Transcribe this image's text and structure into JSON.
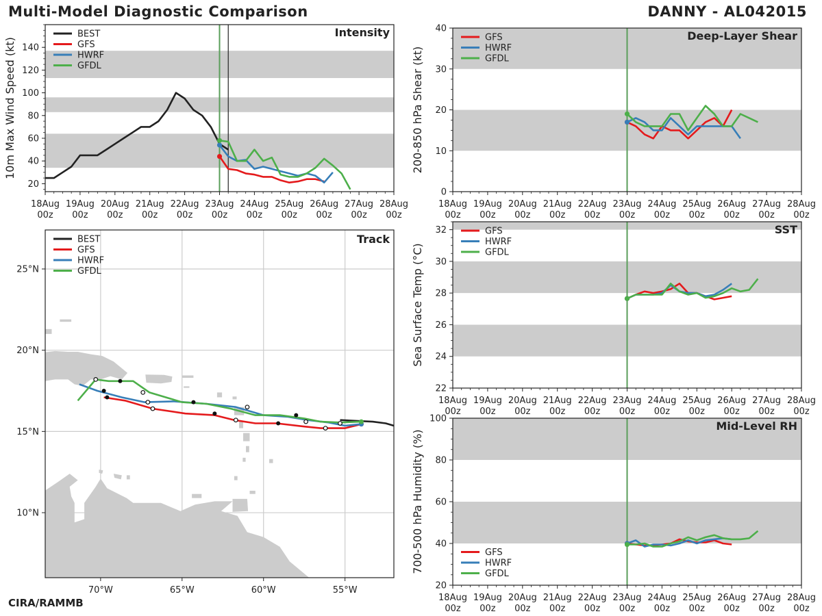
{
  "header": {
    "title": "Multi-Model Diagnostic Comparison",
    "storm": "DANNY - AL042015"
  },
  "footer": {
    "credit": "CIRA/RAMMB"
  },
  "colors": {
    "BEST": "#222222",
    "GFS": "#e41a1c",
    "HWRF": "#377eb8",
    "GFDL": "#4daf4a",
    "band": "#cccccc",
    "land": "#cccccc",
    "grid": "#cccccc",
    "init_line": "#5a9e5a"
  },
  "time_axis": {
    "ticks": [
      "18Aug 00z",
      "19Aug 00z",
      "20Aug 00z",
      "21Aug 00z",
      "22Aug 00z",
      "23Aug 00z",
      "24Aug 00z",
      "25Aug 00z",
      "26Aug 00z",
      "27Aug 00z",
      "28Aug 00z"
    ],
    "range_days": [
      0,
      10
    ],
    "init_day": 5
  },
  "chart_data": [
    {
      "id": "intensity",
      "type": "line",
      "title": "Intensity",
      "ylabel": "10m Max Wind Speed (kt)",
      "ylim": [
        13,
        160
      ],
      "yticks": [
        "20",
        "40",
        "60",
        "80",
        "100",
        "120",
        "140"
      ],
      "bands": [
        [
          34,
          64
        ],
        [
          83,
          96
        ],
        [
          113,
          137
        ]
      ],
      "extra_vline_day": 5.25,
      "legend": [
        "BEST",
        "GFS",
        "HWRF",
        "GFDL"
      ],
      "series": [
        {
          "name": "BEST",
          "x": [
            0,
            0.25,
            0.5,
            0.75,
            1,
            1.25,
            1.5,
            1.75,
            2,
            2.25,
            2.5,
            2.75,
            3,
            3.25,
            3.5,
            3.75,
            4,
            4.25,
            4.5,
            4.75,
            5,
            5.25
          ],
          "y": [
            25,
            25,
            30,
            35,
            45,
            45,
            45,
            50,
            55,
            60,
            65,
            70,
            70,
            75,
            85,
            100,
            95,
            85,
            80,
            70,
            55,
            50
          ]
        },
        {
          "name": "GFS",
          "x": [
            5,
            5.25,
            5.5,
            5.75,
            6,
            6.25,
            6.5,
            6.75,
            7,
            7.25,
            7.5,
            7.75,
            8,
            8.25
          ],
          "y": [
            44,
            33,
            32,
            29,
            28,
            26,
            26,
            23,
            21,
            22,
            24,
            24,
            22,
            null
          ]
        },
        {
          "name": "HWRF",
          "x": [
            5,
            5.25,
            5.5,
            5.75,
            6,
            6.25,
            6.5,
            6.75,
            7,
            7.25,
            7.5,
            7.75,
            8,
            8.25
          ],
          "y": [
            54,
            44,
            40,
            41,
            33,
            35,
            33,
            31,
            29,
            27,
            29,
            27,
            21,
            30
          ]
        },
        {
          "name": "GFDL",
          "x": [
            5,
            5.25,
            5.5,
            5.75,
            6,
            6.25,
            6.5,
            6.75,
            7,
            7.25,
            7.5,
            7.75,
            8,
            8.25,
            8.5,
            8.75
          ],
          "y": [
            58,
            57,
            40,
            40,
            50,
            40,
            43,
            28,
            26,
            26,
            29,
            34,
            42,
            36,
            29,
            15
          ]
        }
      ]
    },
    {
      "id": "track",
      "type": "scatter",
      "title": "Track",
      "xticks": [
        {
          "lon": -70,
          "label": "70°W"
        },
        {
          "lon": -65,
          "label": "65°W"
        },
        {
          "lon": -60,
          "label": "60°W"
        },
        {
          "lon": -55,
          "label": "55°W"
        }
      ],
      "yticks": [
        {
          "lat": 25,
          "label": "25°N"
        },
        {
          "lat": 20,
          "label": "20°N"
        },
        {
          "lat": 15,
          "label": "15°N"
        },
        {
          "lat": 10,
          "label": "10°N"
        }
      ],
      "xlim": [
        -73.4,
        -52
      ],
      "ylim": [
        6,
        27.4
      ],
      "legend": [
        "BEST",
        "GFS",
        "HWRF",
        "GFDL"
      ],
      "series": [
        {
          "name": "BEST",
          "lon": [
            -55.3,
            -54.3,
            -53.3,
            -52.5,
            -52
          ],
          "lat": [
            15.7,
            15.65,
            15.6,
            15.5,
            15.35
          ]
        },
        {
          "name": "GFS",
          "lon": [
            -54,
            -55,
            -56.5,
            -57.5,
            -59.2,
            -60.5,
            -61.8,
            -63,
            -64.8,
            -66.8,
            -68.5,
            -69.8
          ],
          "lat": [
            15.45,
            15.2,
            15.2,
            15.3,
            15.5,
            15.5,
            15.7,
            16.0,
            16.1,
            16.4,
            16.9,
            17.1
          ]
        },
        {
          "name": "HWRF",
          "lon": [
            -54,
            -55,
            -56,
            -57.3,
            -58.5,
            -60,
            -61.7,
            -63.5,
            -65.5,
            -67.3,
            -68.7,
            -70.2,
            -71.3
          ],
          "lat": [
            15.45,
            15.35,
            15.55,
            15.7,
            15.9,
            16.0,
            16.5,
            16.7,
            16.85,
            16.8,
            17.1,
            17.5,
            17.9
          ]
        },
        {
          "name": "GFDL",
          "lon": [
            -54,
            -55.3,
            -56.5,
            -57.5,
            -59,
            -60.5,
            -62,
            -63.5,
            -65,
            -67,
            -68,
            -69.5,
            -70.3,
            -71.4
          ],
          "lat": [
            15.6,
            15.55,
            15.6,
            15.8,
            16.0,
            16.0,
            16.4,
            16.7,
            16.8,
            17.4,
            18.1,
            18.1,
            18.2,
            16.9
          ]
        }
      ],
      "markers": {
        "filled": [
          [
            -58.0,
            16.0
          ],
          [
            -59.1,
            15.5
          ],
          [
            -63.0,
            16.1
          ],
          [
            -64.3,
            16.8
          ],
          [
            -68.8,
            18.1
          ],
          [
            -69.6,
            17.1
          ],
          [
            -69.8,
            17.5
          ]
        ],
        "open": [
          [
            -55.3,
            15.5
          ],
          [
            -56.2,
            15.2
          ],
          [
            -57.4,
            15.6
          ],
          [
            -61.0,
            16.5
          ],
          [
            -61.7,
            15.7
          ],
          [
            -67.1,
            16.8
          ],
          [
            -67.4,
            17.4
          ],
          [
            -70.3,
            18.2
          ],
          [
            -66.8,
            16.4
          ]
        ]
      }
    },
    {
      "id": "shear",
      "type": "line",
      "title": "Deep-Layer Shear",
      "ylabel": "200-850 hPa Shear (kt)",
      "ylim": [
        0,
        40
      ],
      "yticks": [
        "0",
        "10",
        "20",
        "30",
        "40"
      ],
      "bands": [
        [
          10,
          20
        ],
        [
          30,
          40
        ]
      ],
      "legend": [
        "GFS",
        "HWRF",
        "GFDL"
      ],
      "legend_pos": "top-left",
      "series": [
        {
          "name": "GFS",
          "x": [
            5,
            5.25,
            5.5,
            5.75,
            6,
            6.25,
            6.5,
            6.75,
            7,
            7.25,
            7.5,
            7.75,
            8
          ],
          "y": [
            17,
            16,
            14,
            13,
            16,
            15,
            15,
            13,
            15,
            17,
            18,
            16,
            20
          ]
        },
        {
          "name": "HWRF",
          "x": [
            5,
            5.25,
            5.5,
            5.75,
            6,
            6.25,
            6.5,
            6.75,
            7,
            7.25,
            7.5,
            7.75,
            8,
            8.25
          ],
          "y": [
            17,
            18,
            17,
            15,
            15,
            18,
            16,
            14,
            16,
            16,
            16,
            16,
            16,
            13
          ]
        },
        {
          "name": "GFDL",
          "x": [
            5,
            5.25,
            5.5,
            5.75,
            6,
            6.25,
            6.5,
            6.75,
            7,
            7.25,
            7.5,
            7.75,
            8,
            8.25,
            8.5,
            8.75
          ],
          "y": [
            19,
            17,
            16,
            16,
            16,
            19,
            19,
            15,
            18,
            21,
            19,
            16,
            16,
            19,
            18,
            17
          ]
        }
      ]
    },
    {
      "id": "sst",
      "type": "line",
      "title": "SST",
      "ylabel": "Sea Surface Temp (°C)",
      "ylim": [
        22,
        32.5
      ],
      "yticks": [
        "22",
        "24",
        "26",
        "28",
        "30",
        "32"
      ],
      "bands": [
        [
          24,
          26
        ],
        [
          28,
          30
        ],
        [
          32,
          32.5
        ]
      ],
      "legend": [
        "GFS",
        "HWRF",
        "GFDL"
      ],
      "legend_pos": "top-left",
      "series": [
        {
          "name": "GFS",
          "x": [
            5,
            5.25,
            5.5,
            5.75,
            6,
            6.25,
            6.5,
            6.75,
            7,
            7.25,
            7.5,
            7.75,
            8
          ],
          "y": [
            27.65,
            27.9,
            28.1,
            28.0,
            28.1,
            28.25,
            28.6,
            28.0,
            28.0,
            27.8,
            27.6,
            27.7,
            27.8
          ]
        },
        {
          "name": "HWRF",
          "x": [
            5,
            5.25,
            5.5,
            5.75,
            6,
            6.25,
            6.5,
            6.75,
            7,
            7.25,
            7.5,
            7.75,
            8
          ],
          "y": [
            27.65,
            27.9,
            27.9,
            27.9,
            28.0,
            28.5,
            28.1,
            28.0,
            28.0,
            27.8,
            27.9,
            28.2,
            28.6
          ]
        },
        {
          "name": "GFDL",
          "x": [
            5,
            5.25,
            5.5,
            5.75,
            6,
            6.25,
            6.5,
            6.75,
            7,
            7.25,
            7.5,
            7.75,
            8,
            8.25,
            8.5,
            8.75
          ],
          "y": [
            27.65,
            27.9,
            27.9,
            27.9,
            27.9,
            28.6,
            28.1,
            27.9,
            28.0,
            27.7,
            27.8,
            28.0,
            28.3,
            28.1,
            28.2,
            28.9
          ]
        }
      ]
    },
    {
      "id": "rh",
      "type": "line",
      "title": "Mid-Level RH",
      "ylabel": "700-500 hPa Humidity (%)",
      "ylim": [
        20,
        100
      ],
      "yticks": [
        "20",
        "40",
        "60",
        "80",
        "100"
      ],
      "bands": [
        [
          40,
          60
        ],
        [
          80,
          100
        ]
      ],
      "legend": [
        "GFS",
        "HWRF",
        "GFDL"
      ],
      "legend_pos": "bottom-left",
      "series": [
        {
          "name": "GFS",
          "x": [
            5,
            5.25,
            5.5,
            5.75,
            6,
            6.25,
            6.5,
            6.75,
            7,
            7.25,
            7.5,
            7.75,
            8
          ],
          "y": [
            40,
            39.5,
            39,
            39,
            39.5,
            40,
            42,
            41,
            40.5,
            40.5,
            41.5,
            40,
            39.5
          ]
        },
        {
          "name": "HWRF",
          "x": [
            5,
            5.25,
            5.5,
            5.75,
            6,
            6.25,
            6.5,
            6.75,
            7,
            7.25,
            7.5,
            7.75,
            8
          ],
          "y": [
            40,
            41.5,
            38.5,
            39.5,
            39.5,
            39,
            40,
            41.5,
            40,
            41.5,
            42,
            42.5,
            42
          ]
        },
        {
          "name": "GFDL",
          "x": [
            5,
            5.25,
            5.5,
            5.75,
            6,
            6.25,
            6.5,
            6.75,
            7,
            7.25,
            7.5,
            7.75,
            8,
            8.25,
            8.5,
            8.75
          ],
          "y": [
            39.5,
            39.5,
            40,
            38.5,
            38.5,
            40,
            41,
            43,
            41.5,
            43,
            44,
            42.5,
            42,
            42,
            42.5,
            46
          ]
        }
      ]
    }
  ]
}
